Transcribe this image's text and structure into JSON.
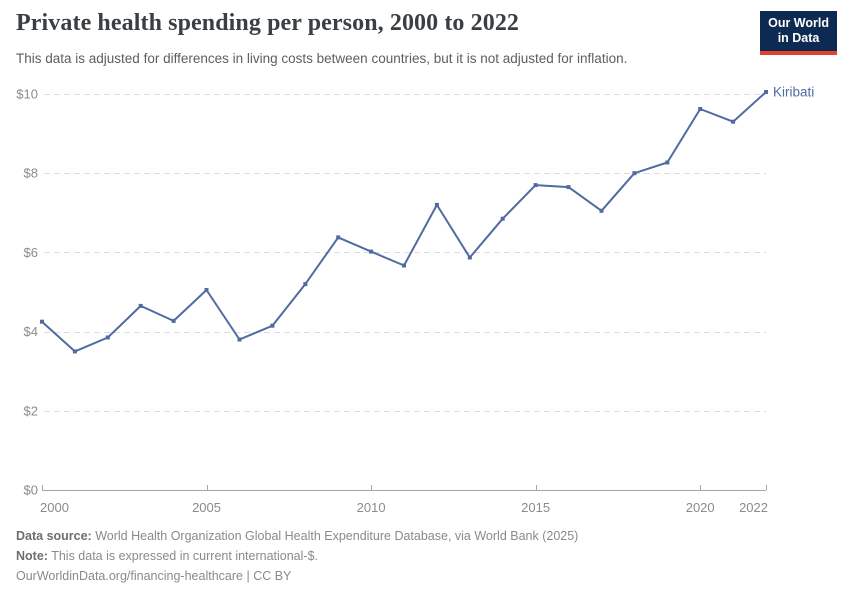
{
  "header": {
    "title": "Private health spending per person, 2000 to 2022",
    "subtitle": "This data is adjusted for differences in living costs between countries, but it is not adjusted for inflation.",
    "logo": {
      "line1": "Our World",
      "line2": "in Data",
      "bg_color": "#0d2a52",
      "accent_color": "#e0432d"
    }
  },
  "chart_data": {
    "type": "line",
    "title": "Private health spending per person, 2000 to 2022",
    "xlabel": "",
    "ylabel": "",
    "xlim": [
      2000,
      2022
    ],
    "ylim": [
      0,
      10
    ],
    "grid": "horizontal-dashed",
    "legend_position": "end-of-line-label",
    "x": [
      2000,
      2001,
      2002,
      2003,
      2004,
      2005,
      2006,
      2007,
      2008,
      2009,
      2010,
      2011,
      2012,
      2013,
      2014,
      2015,
      2016,
      2017,
      2018,
      2019,
      2020,
      2021,
      2022
    ],
    "series": [
      {
        "name": "Kiribati",
        "color": "#4f6ba1",
        "values": [
          4.25,
          3.5,
          3.85,
          4.65,
          4.27,
          5.05,
          3.8,
          4.15,
          5.2,
          6.38,
          6.02,
          5.67,
          7.2,
          5.87,
          6.85,
          7.7,
          7.65,
          7.05,
          8.0,
          8.27,
          9.62,
          9.3,
          10.05
        ]
      }
    ],
    "xticks": [
      {
        "value": 2000,
        "label": "2000"
      },
      {
        "value": 2005,
        "label": "2005"
      },
      {
        "value": 2010,
        "label": "2010"
      },
      {
        "value": 2015,
        "label": "2015"
      },
      {
        "value": 2020,
        "label": "2020"
      },
      {
        "value": 2022,
        "label": "2022"
      }
    ],
    "yticks": [
      {
        "value": 0,
        "label": "$0"
      },
      {
        "value": 2,
        "label": "$2"
      },
      {
        "value": 4,
        "label": "$4"
      },
      {
        "value": 6,
        "label": "$6"
      },
      {
        "value": 8,
        "label": "$8"
      },
      {
        "value": 10,
        "label": "$10"
      }
    ],
    "entity_label": "Kiribati",
    "colors": {
      "gridline": "#dcdcdc",
      "axis": "#a5a5a5",
      "tick_label": "#8b8b8b"
    }
  },
  "footer": {
    "source_label": "Data source:",
    "source_text": " World Health Organization Global Health Expenditure Database, via World Bank (2025)",
    "note_label": "Note:",
    "note_text": " This data is expressed in current international-$.",
    "link": "OurWorldinData.org/financing-healthcare",
    "separator": " | ",
    "license": "CC BY"
  }
}
